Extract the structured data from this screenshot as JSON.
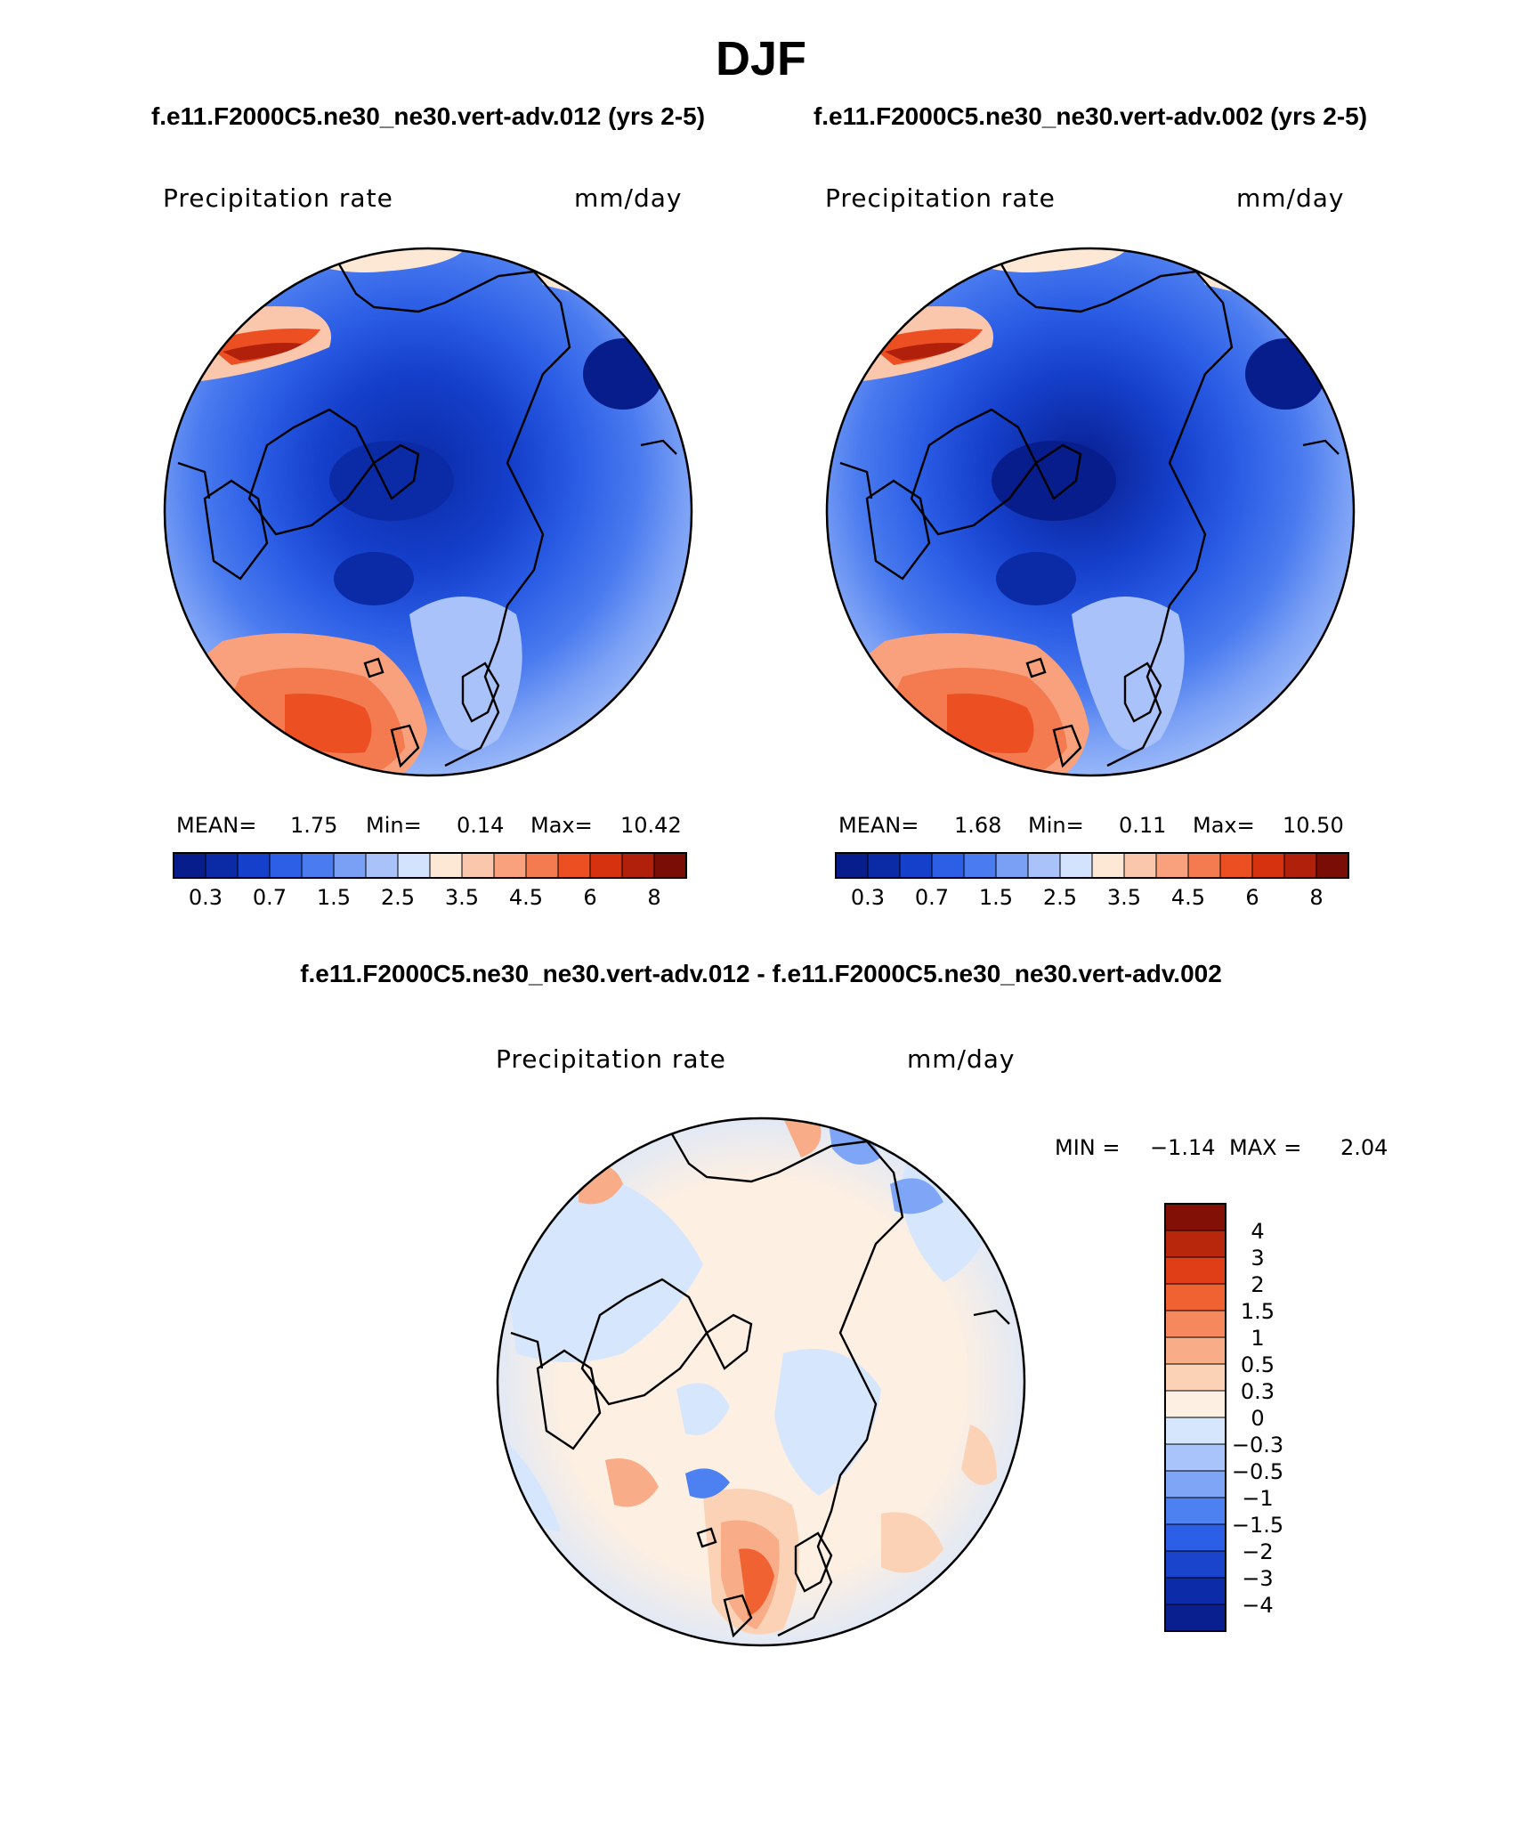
{
  "title": "DJF",
  "panels": [
    {
      "case_title": "f.e11.F2000C5.ne30_ne30.vert-adv.012 (yrs 2-5)",
      "variable": "Precipitation rate",
      "units": "mm/day",
      "stats": {
        "mean_label": "MEAN=",
        "mean": "1.75",
        "min_label": "Min=",
        "min": "0.14",
        "max_label": "Max=",
        "max": "10.42"
      }
    },
    {
      "case_title": "f.e11.F2000C5.ne30_ne30.vert-adv.002 (yrs 2-5)",
      "variable": "Precipitation rate",
      "units": "mm/day",
      "stats": {
        "mean_label": "MEAN=",
        "mean": "1.68",
        "min_label": "Min=",
        "min": "0.11",
        "max_label": "Max=",
        "max": "10.50"
      }
    }
  ],
  "diff_panel": {
    "title": "f.e11.F2000C5.ne30_ne30.vert-adv.012 - f.e11.F2000C5.ne30_ne30.vert-adv.002",
    "variable": "Precipitation rate",
    "units": "mm/day",
    "min_label": "MIN =",
    "min": "−1.14",
    "max_label": "MAX =",
    "max": "2.04"
  },
  "colorbar_main": {
    "colors": [
      "#081d8c",
      "#0b2aa6",
      "#1540cc",
      "#2c5ee6",
      "#4a7bef",
      "#7aa0f5",
      "#a9c3fa",
      "#d3e2fd",
      "#fde8d6",
      "#fbc7ac",
      "#f9a07d",
      "#f47a50",
      "#ec4f22",
      "#d63210",
      "#b0200a",
      "#7a0d05"
    ],
    "tick_labels": [
      "0.3",
      "0.7",
      "1.5",
      "2.5",
      "3.5",
      "4.5",
      "6",
      "8"
    ]
  },
  "colorbar_diff": {
    "colors": [
      "#0a1f8f",
      "#0c2ba8",
      "#1a44cc",
      "#2c5fe6",
      "#4d80f0",
      "#7fa6f6",
      "#a9c4fa",
      "#d6e6fd",
      "#fdefe2",
      "#fbd2b6",
      "#f9ac88",
      "#f6885d",
      "#f06232",
      "#e03e16",
      "#b8260c",
      "#821006"
    ],
    "tick_labels": [
      "4",
      "3",
      "2",
      "1.5",
      "1",
      "0.5",
      "0.3",
      "0",
      "−0.3",
      "−0.5",
      "−1",
      "−1.5",
      "−2",
      "−3",
      "−4"
    ]
  }
}
